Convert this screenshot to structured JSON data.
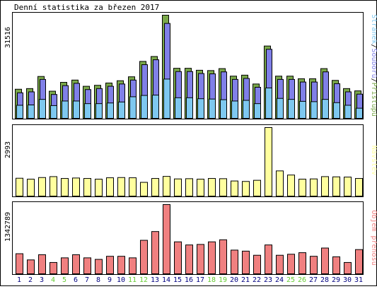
{
  "chart_data": {
    "type": "bar",
    "title": "Denní statistika za březen 2017",
    "days": [
      "1",
      "2",
      "3",
      "4",
      "5",
      "6",
      "7",
      "8",
      "9",
      "10",
      "11",
      "12",
      "13",
      "14",
      "15",
      "16",
      "17",
      "18",
      "19",
      "20",
      "21",
      "22",
      "23",
      "24",
      "25",
      "26",
      "27",
      "28",
      "29",
      "30",
      "31"
    ],
    "weekend_days": [
      "4",
      "5",
      "11",
      "12",
      "18",
      "19",
      "25",
      "26"
    ],
    "panels": [
      {
        "id": "top",
        "max_label": "31516",
        "legend": [
          "Stránek",
          "/",
          "Souborů",
          "/",
          "Přístupů"
        ],
        "ylim": [
          0,
          31516
        ],
        "series": [
          {
            "name": "Přístupů",
            "color": "#7aa84a",
            "values": [
              8900,
              9100,
              12800,
              8300,
              11000,
              11700,
              9800,
              10100,
              10800,
              11500,
              12700,
              17400,
              18900,
              31516,
              15300,
              15300,
              14700,
              14600,
              15200,
              12900,
              13200,
              10500,
              22100,
              12900,
              12900,
              12100,
              12100,
              15200,
              11600,
              9100,
              8400
            ]
          },
          {
            "name": "Souborů",
            "color": "#8080e8",
            "values": [
              7800,
              8100,
              11900,
              7300,
              10000,
              10700,
              8800,
              9100,
              9800,
              10500,
              11700,
              16400,
              17900,
              29000,
              14300,
              14300,
              13700,
              13600,
              14200,
              11900,
              12200,
              9500,
              21100,
              11900,
              11900,
              11100,
              11100,
              14200,
              10600,
              8100,
              7400
            ]
          },
          {
            "name": "Stránek",
            "color": "#7ec8f0",
            "values": [
              4000,
              4100,
              5800,
              3900,
              5300,
              5300,
              4500,
              4500,
              4700,
              5000,
              6600,
              7000,
              7100,
              12000,
              6300,
              6300,
              6000,
              5900,
              5700,
              5300,
              5500,
              4500,
              9300,
              6100,
              5800,
              5200,
              5100,
              5800,
              4800,
              4000,
              3100
            ]
          }
        ]
      },
      {
        "id": "middle",
        "max_label": "2993",
        "legend": [
          "Návštěv"
        ],
        "ylim": [
          0,
          2993
        ],
        "series": [
          {
            "name": "Návštěv",
            "color": "#ffff9e",
            "values": [
              780,
              740,
              810,
              850,
              770,
              790,
              770,
              740,
              800,
              810,
              800,
              600,
              770,
              860,
              750,
              760,
              740,
              770,
              760,
              660,
              640,
              690,
              2993,
              1100,
              920,
              740,
              750,
              850,
              840,
              830,
              770
            ]
          }
        ]
      },
      {
        "id": "bottom",
        "max_label": "1342789",
        "legend": [
          "Objem přenosu"
        ],
        "ylim": [
          0,
          1342789
        ],
        "series": [
          {
            "name": "Objem přenosu",
            "color": "#f08080",
            "values": [
              390000,
              270000,
              370000,
              220000,
              310000,
              370000,
              310000,
              280000,
              340000,
              340000,
              310000,
              650000,
              820000,
              1342789,
              620000,
              560000,
              570000,
              620000,
              660000,
              460000,
              440000,
              360000,
              560000,
              360000,
              380000,
              410000,
              340000,
              500000,
              330000,
              220000,
              470000
            ]
          }
        ]
      }
    ]
  },
  "colors": {
    "weekday_label": "#000080",
    "weekend_label": "#66cc33",
    "frame": "#000000",
    "panel_bg": "#ffffff"
  }
}
